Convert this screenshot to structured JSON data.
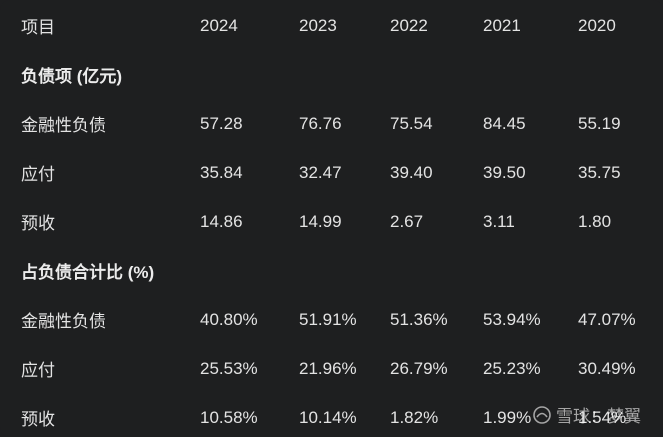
{
  "table": {
    "header": [
      "项目",
      "2024",
      "2023",
      "2022",
      "2021",
      "2020"
    ],
    "rows": [
      {
        "type": "section",
        "label": "负债项 (亿元)"
      },
      {
        "type": "data",
        "label": "金融性负债",
        "values": [
          "57.28",
          "76.76",
          "75.54",
          "84.45",
          "55.19"
        ]
      },
      {
        "type": "data",
        "label": "应付",
        "values": [
          "35.84",
          "32.47",
          "39.40",
          "39.50",
          "35.75"
        ]
      },
      {
        "type": "data",
        "label": "预收",
        "values": [
          "14.86",
          "14.99",
          "2.67",
          "3.11",
          "1.80"
        ]
      },
      {
        "type": "section",
        "label": "占负债合计比 (%)"
      },
      {
        "type": "data",
        "label": "金融性负债",
        "values": [
          "40.80%",
          "51.91%",
          "51.36%",
          "53.94%",
          "47.07%"
        ]
      },
      {
        "type": "data",
        "label": "应付",
        "values": [
          "25.53%",
          "21.96%",
          "26.79%",
          "25.23%",
          "30.49%"
        ]
      },
      {
        "type": "data",
        "label": "预收",
        "values": [
          "10.58%",
          "10.14%",
          "1.82%",
          "1.99%",
          "1.54%"
        ]
      }
    ]
  },
  "watermark": {
    "text": "雪球：梦翼",
    "icon": "snowball-logo-icon"
  },
  "colors": {
    "background": "#1e1f20",
    "text": "#e3e3e3"
  }
}
